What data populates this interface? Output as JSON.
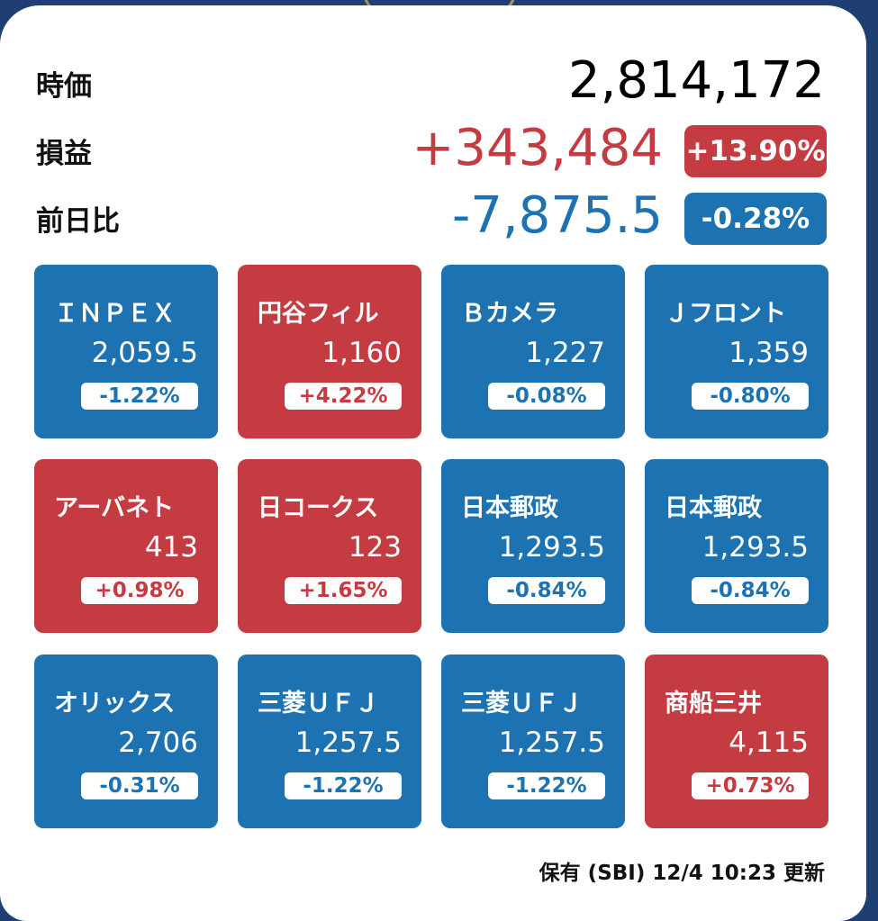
{
  "summary": {
    "market_value_label": "時価",
    "market_value": "2,814,172",
    "pl_label": "損益",
    "pl_value": "+343,484",
    "pl_pct": "+13.90%",
    "day_label": "前日比",
    "day_value": "-7,875.5",
    "day_pct": "-0.28%"
  },
  "tiles": [
    {
      "name": "ＩＮＰＥＸ",
      "price": "2,059.5",
      "change": "-1.22%",
      "color": "#1d72b1"
    },
    {
      "name": "円谷フィル",
      "price": "1,160",
      "change": "+4.22%",
      "color": "#c43c42"
    },
    {
      "name": "Ｂカメラ",
      "price": "1,227",
      "change": "-0.08%",
      "color": "#1d72b1"
    },
    {
      "name": "Ｊフロント",
      "price": "1,359",
      "change": "-0.80%",
      "color": "#1d72b1"
    },
    {
      "name": "アーバネト",
      "price": "413",
      "change": "+0.98%",
      "color": "#c43c42"
    },
    {
      "name": "日コークス",
      "price": "123",
      "change": "+1.65%",
      "color": "#c43c42"
    },
    {
      "name": "日本郵政",
      "price": "1,293.5",
      "change": "-0.84%",
      "color": "#1d72b1"
    },
    {
      "name": "日本郵政",
      "price": "1,293.5",
      "change": "-0.84%",
      "color": "#1d72b1"
    },
    {
      "name": "オリックス",
      "price": "2,706",
      "change": "-0.31%",
      "color": "#1d72b1"
    },
    {
      "name": "三菱ＵＦＪ",
      "price": "1,257.5",
      "change": "-1.22%",
      "color": "#1d72b1"
    },
    {
      "name": "三菱ＵＦＪ",
      "price": "1,257.5",
      "change": "-1.22%",
      "color": "#1d72b1"
    },
    {
      "name": "商船三井",
      "price": "4,115",
      "change": "+0.73%",
      "color": "#c43c42"
    }
  ],
  "footer": {
    "status": "保有 (SBI) 12/4 10:23 更新"
  },
  "colors": {
    "up": "#c43c42",
    "down": "#1d72b1"
  }
}
